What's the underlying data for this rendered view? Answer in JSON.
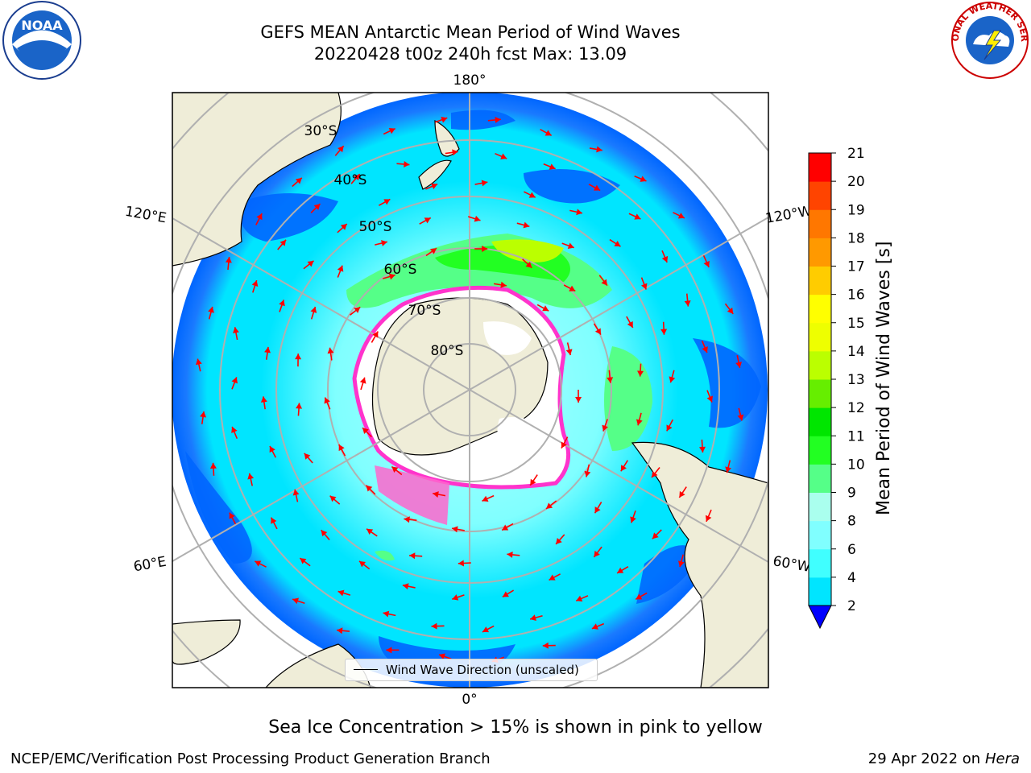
{
  "title": {
    "line1": "GEFS MEAN Antarctic Mean Period of Wind Waves",
    "line2": "20220428 t00z 240h fcst   Max: 13.09"
  },
  "logos": {
    "noaa": {
      "icon": "noaa-logo",
      "text": "NOAA"
    },
    "nws": {
      "icon": "nws-logo",
      "text": "NATIONAL WEATHER SERVICE"
    }
  },
  "map": {
    "projection": "south-polar-stereographic",
    "longitude_labels": {
      "top": "180°",
      "bottom": "0°",
      "upper_left": "120°E",
      "upper_right": "120°W",
      "lower_left": "60°E",
      "lower_right": "60°W"
    },
    "latitude_labels": [
      "30°S",
      "40°S",
      "50°S",
      "60°S",
      "70°S",
      "80°S"
    ],
    "colors": {
      "land": "#efedd8",
      "ice": "#ffffff",
      "ice_edge": "#ff33cc",
      "arrows": "#ff0000",
      "grid": "#b0b0b0"
    }
  },
  "legend": {
    "entry": "Wind Wave Direction (unscaled)"
  },
  "colorbar": {
    "label": "Mean Period of Wind Waves [s]",
    "ticks": [
      "2",
      "4",
      "6",
      "8",
      "9",
      "10",
      "11",
      "12",
      "13",
      "14",
      "15",
      "16",
      "17",
      "18",
      "19",
      "20",
      "21"
    ],
    "colors": [
      "#0066ff",
      "#00e5ff",
      "#40ffff",
      "#80ffff",
      "#aaffee",
      "#55ff88",
      "#22ff22",
      "#00e600",
      "#66ee00",
      "#bbff00",
      "#eeff00",
      "#ffff00",
      "#ffcc00",
      "#ff9900",
      "#ff7700",
      "#ff4400",
      "#ff0000"
    ],
    "extend_color": "#0000ff"
  },
  "footer": {
    "note": "Sea Ice Concentration > 15% is shown in pink to yellow",
    "credit": "NCEP/EMC/Verification Post Processing Product Generation Branch",
    "date": "29 Apr 2022 on ",
    "machine": "Hera"
  }
}
